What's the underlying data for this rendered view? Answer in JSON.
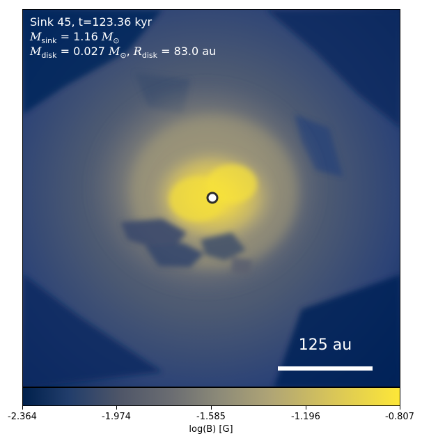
{
  "annotations": {
    "sink_title": "Sink 45, t=123.36 kyr",
    "m_sink_symbol": "M",
    "m_sink_sub": "sink",
    "m_sink_value": "= 1.16",
    "m_sink_unit": "M",
    "m_sink_unit_sub": "⊙",
    "m_disk_symbol": "M",
    "m_disk_sub": "disk",
    "m_disk_value": "= 0.027",
    "m_disk_unit": "M",
    "m_disk_unit_sub": "⊙",
    "separator": ", ",
    "r_disk_symbol": "R",
    "r_disk_sub": "disk",
    "r_disk_value": "= 83.0",
    "r_disk_unit": "au"
  },
  "scale_bar": {
    "label": "125 au"
  },
  "colorbar": {
    "label": "log(B) [G]",
    "ticks": [
      "-2.364",
      "-1.974",
      "-1.585",
      "-1.196",
      "-0.807"
    ],
    "colormap": "cividis"
  },
  "colors": {
    "low": "#00204c",
    "mid": "#7c7b78",
    "high": "#fde738",
    "annotation": "#ffffff"
  }
}
